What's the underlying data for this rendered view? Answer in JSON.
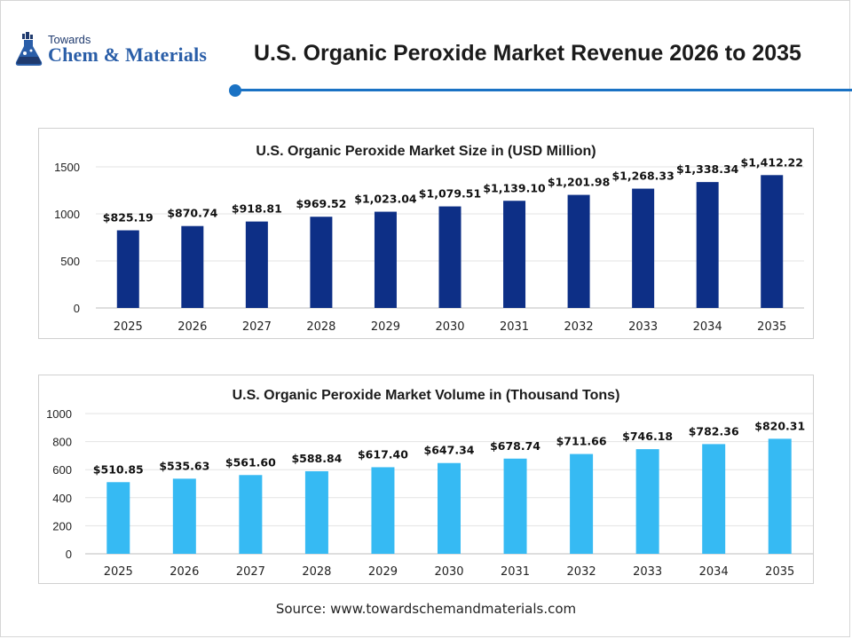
{
  "header": {
    "logo_small": "Towards",
    "logo_big": "Chem & Materials",
    "title": "U.S. Organic Peroxide Market Revenue 2026 to 2035"
  },
  "colors": {
    "accent": "#1a72c4",
    "revenue_bar": "#0d2f86",
    "volume_bar": "#36baf3",
    "grid": "#e3e3e3"
  },
  "source": "Source: www.towardschemandmaterials.com",
  "chart_data": [
    {
      "type": "bar",
      "title": "U.S. Organic Peroxide Market Size in (USD Million)",
      "categories": [
        "2025",
        "2026",
        "2027",
        "2028",
        "2029",
        "2030",
        "2031",
        "2032",
        "2033",
        "2034",
        "2035"
      ],
      "values": [
        825.19,
        870.74,
        918.81,
        969.52,
        1023.04,
        1079.51,
        1139.1,
        1201.98,
        1268.33,
        1338.34,
        1412.22
      ],
      "data_labels": [
        "$825.19",
        "$870.74",
        "$918.81",
        "$969.52",
        "$1,023.04",
        "$1,079.51",
        "$1,139.10",
        "$1,201.98",
        "$1,268.33",
        "$1,338.34",
        "$1,412.22"
      ],
      "yticks": [
        "0",
        "500",
        "1000",
        "1500"
      ],
      "ylim": [
        0,
        1500
      ],
      "xlabel": "",
      "ylabel": "",
      "grid": true,
      "color": "#0d2f86"
    },
    {
      "type": "bar",
      "title": "U.S. Organic Peroxide Market Volume in (Thousand Tons)",
      "categories": [
        "2025",
        "2026",
        "2027",
        "2028",
        "2029",
        "2030",
        "2031",
        "2032",
        "2033",
        "2034",
        "2035"
      ],
      "values": [
        510.85,
        535.63,
        561.6,
        588.84,
        617.4,
        647.34,
        678.74,
        711.66,
        746.18,
        782.36,
        820.31
      ],
      "data_labels": [
        "$510.85",
        "$535.63",
        "$561.60",
        "$588.84",
        "$617.40",
        "$647.34",
        "$678.74",
        "$711.66",
        "$746.18",
        "$782.36",
        "$820.31"
      ],
      "yticks": [
        "0",
        "200",
        "400",
        "600",
        "800",
        "1000"
      ],
      "ylim": [
        0,
        1000
      ],
      "xlabel": "",
      "ylabel": "",
      "grid": true,
      "color": "#36baf3"
    }
  ]
}
